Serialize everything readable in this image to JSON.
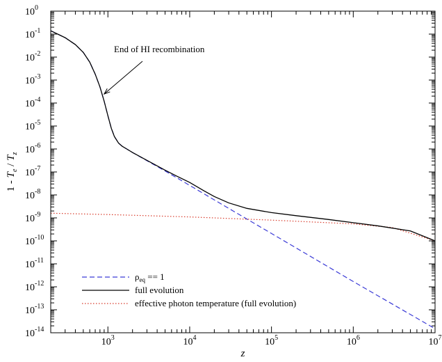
{
  "chart_data": {
    "type": "line",
    "xscale": "log",
    "yscale": "log",
    "xlim": [
      200,
      10000000
    ],
    "ylim": [
      1e-14,
      1
    ],
    "xlabel": "z",
    "ylabel": "1 - T_e / T_z",
    "ylabel_parts": {
      "prefix": "1 - ",
      "var1": "T",
      "sub1": "e",
      "mid": " / ",
      "var2": "T",
      "sub2": "z"
    },
    "x_ticks": [
      {
        "value": 1000,
        "base": "10",
        "exp": "3"
      },
      {
        "value": 10000,
        "base": "10",
        "exp": "4"
      },
      {
        "value": 100000,
        "base": "10",
        "exp": "5"
      },
      {
        "value": 1000000,
        "base": "10",
        "exp": "6"
      },
      {
        "value": 10000000,
        "base": "10",
        "exp": "7"
      }
    ],
    "y_ticks": [
      {
        "value": 1,
        "base": "10",
        "exp": "0"
      },
      {
        "value": 0.1,
        "base": "10",
        "exp": "-1"
      },
      {
        "value": 0.01,
        "base": "10",
        "exp": "-2"
      },
      {
        "value": 0.001,
        "base": "10",
        "exp": "-3"
      },
      {
        "value": 0.0001,
        "base": "10",
        "exp": "-4"
      },
      {
        "value": 1e-05,
        "base": "10",
        "exp": "-5"
      },
      {
        "value": 1e-06,
        "base": "10",
        "exp": "-6"
      },
      {
        "value": 1e-07,
        "base": "10",
        "exp": "-7"
      },
      {
        "value": 1e-08,
        "base": "10",
        "exp": "-8"
      },
      {
        "value": 1e-09,
        "base": "10",
        "exp": "-9"
      },
      {
        "value": 1e-10,
        "base": "10",
        "exp": "-10"
      },
      {
        "value": 1e-11,
        "base": "10",
        "exp": "-11"
      },
      {
        "value": 1e-12,
        "base": "10",
        "exp": "-12"
      },
      {
        "value": 1e-13,
        "base": "10",
        "exp": "-13"
      },
      {
        "value": 1e-14,
        "base": "10",
        "exp": "-14"
      }
    ],
    "series": [
      {
        "name": "full evolution",
        "style": "solid",
        "color": "#000000",
        "x": [
          200,
          300,
          400,
          500,
          600,
          700,
          800,
          900,
          1000,
          1100,
          1200,
          1350,
          1500,
          1700,
          2000,
          3000,
          5000,
          7000,
          10000,
          15000,
          20000,
          30000,
          50000,
          100000,
          200000,
          500000,
          1000000,
          2000000,
          5000000,
          10000000
        ],
        "y": [
          0.14,
          0.07,
          0.035,
          0.016,
          0.006,
          0.0018,
          0.0005,
          0.00012,
          2.8e-05,
          8e-06,
          3.5e-06,
          1.8e-06,
          1.3e-06,
          1e-06,
          7e-07,
          3.2e-07,
          1.2e-07,
          6.5e-08,
          3.5e-08,
          1.5e-08,
          8.5e-09,
          4.5e-09,
          2.6e-09,
          1.7e-09,
          1.25e-09,
          8.5e-10,
          6.2e-10,
          4.5e-10,
          2.7e-10,
          1e-10
        ]
      },
      {
        "name": "ρ_eq == 1",
        "name_parts": {
          "prefix": "ρ",
          "sub": "eq",
          "suffix": " == 1"
        },
        "style": "dashed",
        "color": "#3a3ad6",
        "x": [
          200,
          300,
          400,
          500,
          600,
          700,
          800,
          900,
          1000,
          1100,
          1200,
          1350,
          1500,
          1700,
          2000,
          3000,
          5000,
          7000,
          10000,
          30000,
          100000,
          1000000,
          10000000
        ],
        "y": [
          0.14,
          0.07,
          0.035,
          0.016,
          0.006,
          0.0018,
          0.0005,
          0.00012,
          2.8e-05,
          8e-06,
          3.5e-06,
          1.8e-06,
          1.3e-06,
          1e-06,
          7e-07,
          3.1e-07,
          1.1e-07,
          5.5e-08,
          2.6e-08,
          2.6e-09,
          2.1e-10,
          1.7e-12,
          1.5e-14
        ]
      },
      {
        "name": "effective photon temperature (full evolution)",
        "style": "dotted",
        "color": "#d83a2a",
        "x": [
          200,
          1000,
          10000,
          100000,
          1000000,
          3000000,
          10000000
        ],
        "y": [
          1.6e-09,
          1.4e-09,
          1.1e-09,
          8e-10,
          5.5e-10,
          3.8e-10,
          1e-10
        ]
      }
    ],
    "legend_order": [
      1,
      0,
      2
    ],
    "legend_position": "bottom-left",
    "annotation": {
      "text": "End of HI recombination",
      "x": 900,
      "y": 0.0002
    }
  }
}
